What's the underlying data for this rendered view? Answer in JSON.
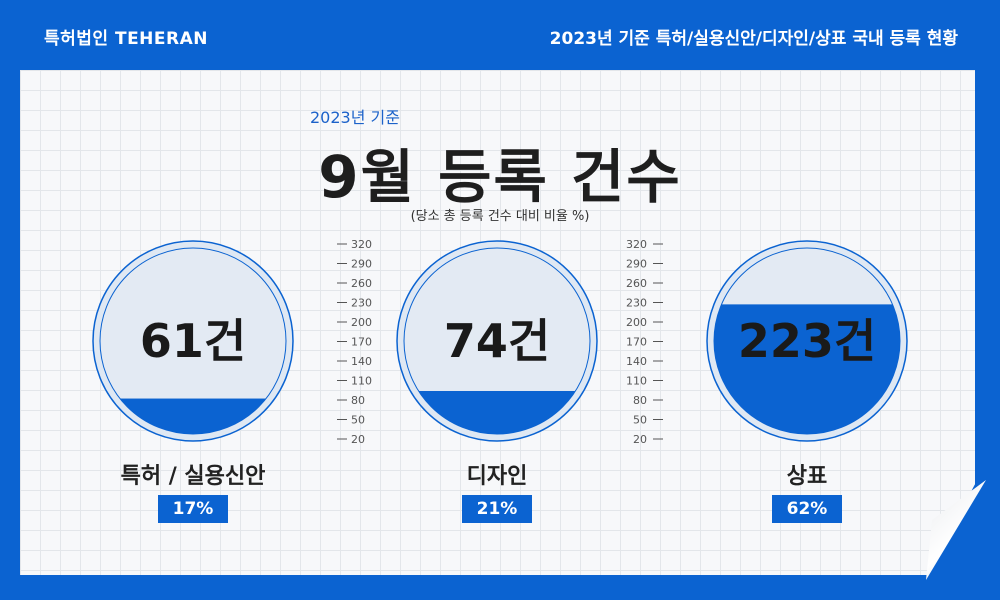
{
  "header": {
    "brand": "특허법인 TEHERAN",
    "title": "2023년 기준 특허/실용신안/디자인/상표 국내 등록 현황"
  },
  "subtitle": "2023년 기준",
  "title": "9월 등록 건수",
  "note": "(당소 총 등록 건수 대비 비율 %)",
  "colors": {
    "accent": "#0b63d1",
    "circle_bg": "#e3eaf3"
  },
  "chart_data": {
    "type": "gauge",
    "scale_ticks": [
      320,
      290,
      260,
      230,
      200,
      170,
      140,
      110,
      80,
      50,
      20
    ],
    "ylim": [
      0,
      320
    ],
    "categories": [
      "특허 / 실용신안",
      "디자인",
      "상표"
    ],
    "values": [
      61,
      74,
      223
    ],
    "value_labels": [
      "61건",
      "74건",
      "223건"
    ],
    "percent_labels": [
      "17%",
      "21%",
      "62%"
    ],
    "percents": [
      17,
      21,
      62
    ]
  }
}
